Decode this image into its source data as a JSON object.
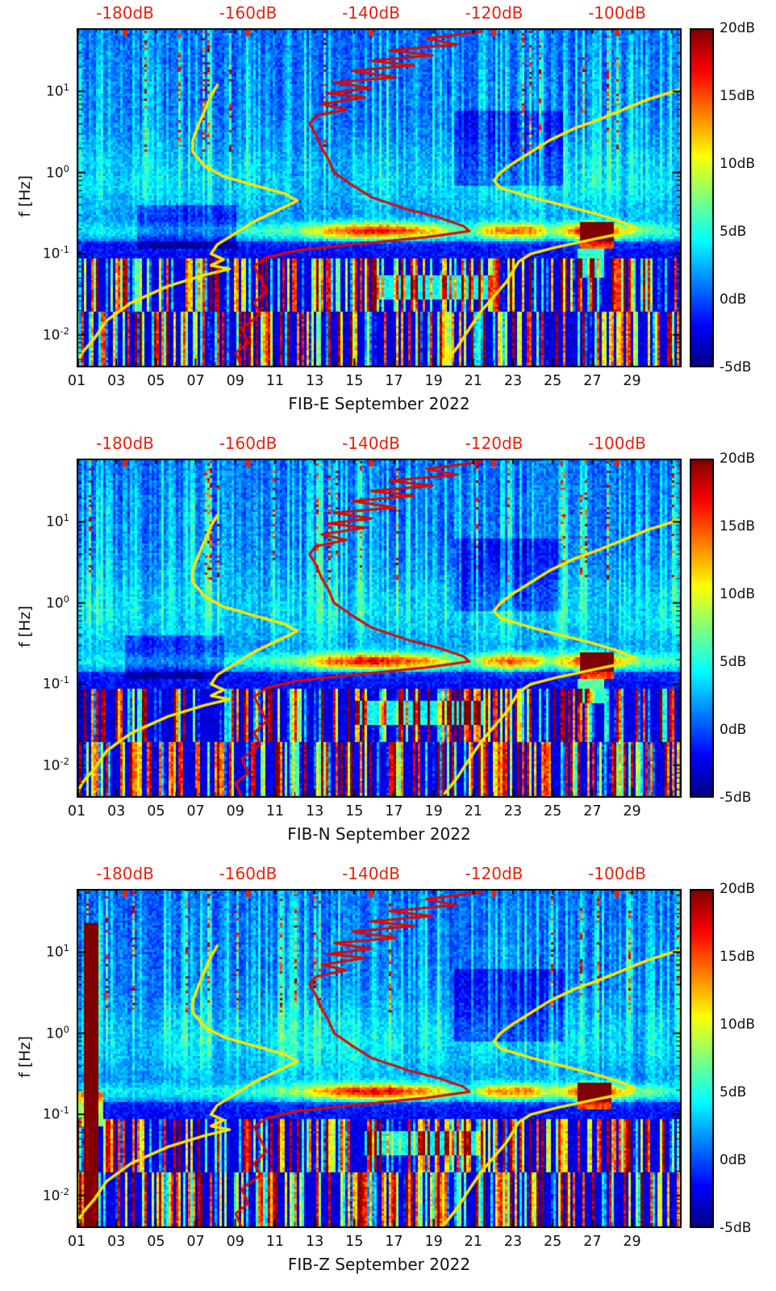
{
  "page": {
    "background": "#ffffff"
  },
  "colors": {
    "axis_text": "#111111",
    "top_axis_text": "#e8220f",
    "red_curve": "#e10600",
    "yellow_curve": "#ffe400",
    "plot_border": "#000000"
  },
  "chart_data": [
    {
      "type": "heatmap",
      "title": "FIB-E September 2022",
      "xlabel": "FIB-E September 2022",
      "ylabel": "f [Hz]",
      "x_ticks": [
        "01",
        "03",
        "05",
        "07",
        "09",
        "11",
        "13",
        "15",
        "17",
        "19",
        "21",
        "23",
        "25",
        "27",
        "29"
      ],
      "x_range_days": [
        1,
        31.5
      ],
      "y_ticks": [
        "10^1",
        "10^0",
        "10^-1",
        "10^-2"
      ],
      "y_scale": "log",
      "y_range_hz": [
        0.004,
        60
      ],
      "top_axis": {
        "ticks": [
          "-180dB",
          "-160dB",
          "-140dB",
          "-120dB",
          "-100dB"
        ],
        "values_db": [
          -180,
          -160,
          -140,
          -120,
          -100
        ],
        "applies_to": "overlay noise curves"
      },
      "colorbar": {
        "ticks": [
          "20dB",
          "15dB",
          "10dB",
          "5dB",
          "0dB",
          "-5dB"
        ],
        "values_db": [
          20,
          15,
          10,
          5,
          0,
          -5
        ],
        "range_db": [
          -5,
          20
        ],
        "colormap": "jet"
      },
      "heatmap": {
        "seed": 11,
        "band_profile": [
          [
            1,
            2.5
          ],
          [
            4,
            3
          ],
          [
            7,
            3
          ],
          [
            10,
            4
          ],
          [
            12,
            6
          ],
          [
            13,
            9
          ],
          [
            14,
            13
          ],
          [
            15,
            15
          ],
          [
            16,
            16
          ],
          [
            17,
            15
          ],
          [
            18,
            13
          ],
          [
            19,
            10
          ],
          [
            20,
            6
          ],
          [
            21,
            5
          ],
          [
            21.8,
            11
          ],
          [
            23,
            13
          ],
          [
            24,
            12
          ],
          [
            24.8,
            7
          ],
          [
            25.6,
            9
          ],
          [
            26.3,
            15
          ],
          [
            27,
            18
          ],
          [
            27.8,
            14
          ],
          [
            28.5,
            9
          ],
          [
            29.5,
            6
          ],
          [
            31,
            4
          ]
        ],
        "hotspots": [
          [
            26.4,
            28.1,
            -0.93,
            -0.62,
            16
          ],
          [
            26.3,
            27.6,
            -1.3,
            -0.95,
            7
          ],
          [
            4,
            9,
            -0.95,
            -0.4,
            -3
          ],
          [
            20,
            25.5,
            -0.15,
            0.75,
            -3
          ],
          [
            16,
            22,
            -1.55,
            -1.28,
            7
          ]
        ],
        "hotspot_format": "day_start, day_end, log10f_start, log10f_end, amplitude_db"
      }
    },
    {
      "type": "heatmap",
      "title": "FIB-N September 2022",
      "xlabel": "FIB-N September 2022",
      "ylabel": "f [Hz]",
      "x_ticks": [
        "01",
        "03",
        "05",
        "07",
        "09",
        "11",
        "13",
        "15",
        "17",
        "19",
        "21",
        "23",
        "25",
        "27",
        "29"
      ],
      "x_range_days": [
        1,
        31.5
      ],
      "y_ticks": [
        "10^1",
        "10^0",
        "10^-1",
        "10^-2"
      ],
      "y_scale": "log",
      "y_range_hz": [
        0.004,
        60
      ],
      "top_axis": {
        "ticks": [
          "-180dB",
          "-160dB",
          "-140dB",
          "-120dB",
          "-100dB"
        ],
        "values_db": [
          -180,
          -160,
          -140,
          -120,
          -100
        ],
        "applies_to": "overlay noise curves"
      },
      "colorbar": {
        "ticks": [
          "20dB",
          "15dB",
          "10dB",
          "5dB",
          "0dB",
          "-5dB"
        ],
        "values_db": [
          20,
          15,
          10,
          5,
          0,
          -5
        ],
        "range_db": [
          -5,
          20
        ],
        "colormap": "jet"
      },
      "heatmap": {
        "seed": 23,
        "band_profile": [
          [
            1,
            2.5
          ],
          [
            4,
            3
          ],
          [
            7,
            3
          ],
          [
            10,
            4
          ],
          [
            12,
            6
          ],
          [
            13,
            9
          ],
          [
            14,
            13
          ],
          [
            15,
            15
          ],
          [
            16,
            16
          ],
          [
            17,
            15
          ],
          [
            18,
            13
          ],
          [
            19,
            10
          ],
          [
            20,
            6
          ],
          [
            21,
            5
          ],
          [
            21.8,
            11
          ],
          [
            23,
            13
          ],
          [
            24,
            12
          ],
          [
            24.8,
            7
          ],
          [
            25.6,
            9
          ],
          [
            26.3,
            15
          ],
          [
            27,
            18
          ],
          [
            27.8,
            14
          ],
          [
            28.5,
            9
          ],
          [
            29.5,
            6
          ],
          [
            31,
            4
          ]
        ],
        "hotspots": [
          [
            26.4,
            28.1,
            -0.93,
            -0.62,
            16
          ],
          [
            26.2,
            27.6,
            -1.25,
            -0.95,
            8
          ],
          [
            3.5,
            8.5,
            -0.95,
            -0.4,
            -3
          ],
          [
            20,
            25.5,
            -0.1,
            0.8,
            -3
          ],
          [
            15,
            21.5,
            -1.5,
            -1.22,
            7
          ]
        ],
        "hotspot_format": "day_start, day_end, log10f_start, log10f_end, amplitude_db"
      }
    },
    {
      "type": "heatmap",
      "title": "FIB-Z September 2022",
      "xlabel": "FIB-Z September 2022",
      "ylabel": "f [Hz]",
      "x_ticks": [
        "01",
        "03",
        "05",
        "07",
        "09",
        "11",
        "13",
        "15",
        "17",
        "19",
        "21",
        "23",
        "25",
        "27",
        "29"
      ],
      "x_range_days": [
        1,
        31.5
      ],
      "y_ticks": [
        "10^1",
        "10^0",
        "10^-1",
        "10^-2"
      ],
      "y_scale": "log",
      "y_range_hz": [
        0.004,
        60
      ],
      "top_axis": {
        "ticks": [
          "-180dB",
          "-160dB",
          "-140dB",
          "-120dB",
          "-100dB"
        ],
        "values_db": [
          -180,
          -160,
          -140,
          -120,
          -100
        ],
        "applies_to": "overlay noise curves"
      },
      "colorbar": {
        "ticks": [
          "20dB",
          "15dB",
          "10dB",
          "5dB",
          "0dB",
          "-5dB"
        ],
        "values_db": [
          20,
          15,
          10,
          5,
          0,
          -5
        ],
        "range_db": [
          -5,
          20
        ],
        "colormap": "jet"
      },
      "heatmap": {
        "seed": 37,
        "band_profile": [
          [
            1,
            2.5
          ],
          [
            4,
            3
          ],
          [
            7,
            3
          ],
          [
            10,
            4
          ],
          [
            12,
            6
          ],
          [
            13,
            9
          ],
          [
            14,
            13
          ],
          [
            15,
            15
          ],
          [
            16,
            16
          ],
          [
            17,
            15
          ],
          [
            18,
            13
          ],
          [
            19,
            10
          ],
          [
            20,
            6
          ],
          [
            21,
            5
          ],
          [
            21.8,
            11
          ],
          [
            23,
            13
          ],
          [
            24,
            12
          ],
          [
            24.8,
            7
          ],
          [
            25.6,
            9
          ],
          [
            26.3,
            15
          ],
          [
            27,
            18
          ],
          [
            27.8,
            14
          ],
          [
            28.5,
            9
          ],
          [
            29.5,
            6
          ],
          [
            31,
            4
          ]
        ],
        "hotspots": [
          [
            26.3,
            28.0,
            -0.93,
            -0.62,
            16
          ],
          [
            1.35,
            2.05,
            -2.4,
            1.35,
            22
          ],
          [
            1.0,
            2.35,
            -1.15,
            -0.72,
            10
          ],
          [
            20,
            25.5,
            -0.1,
            0.8,
            -3
          ],
          [
            15.5,
            21.5,
            -1.5,
            -1.22,
            7
          ]
        ],
        "hotspot_format": "day_start, day_end, log10f_start, log10f_end, amplitude_db"
      }
    }
  ],
  "overlay_curves": {
    "note": "Curves overlaid on every panel; x-position is read against the red top dB axis, y is frequency in Hz.",
    "red_observed_db_vs_hz": [
      [
        55,
        -122
      ],
      [
        45,
        -131
      ],
      [
        38,
        -126
      ],
      [
        32,
        -137
      ],
      [
        28,
        -130
      ],
      [
        24,
        -140
      ],
      [
        21,
        -133
      ],
      [
        18,
        -143
      ],
      [
        15,
        -136
      ],
      [
        13,
        -146
      ],
      [
        11,
        -140
      ],
      [
        9.5,
        -147
      ],
      [
        8.5,
        -141
      ],
      [
        7,
        -148
      ],
      [
        6,
        -144
      ],
      [
        5,
        -149
      ],
      [
        4,
        -150
      ],
      [
        3,
        -149
      ],
      [
        2,
        -148
      ],
      [
        1.5,
        -147
      ],
      [
        1,
        -146
      ],
      [
        0.7,
        -143
      ],
      [
        0.5,
        -140
      ],
      [
        0.35,
        -134
      ],
      [
        0.28,
        -129
      ],
      [
        0.22,
        -125
      ],
      [
        0.19,
        -124
      ],
      [
        0.16,
        -131
      ],
      [
        0.13,
        -143
      ],
      [
        0.11,
        -152
      ],
      [
        0.09,
        -157
      ],
      [
        0.07,
        -159
      ],
      [
        0.05,
        -158
      ],
      [
        0.035,
        -157
      ],
      [
        0.025,
        -159
      ],
      [
        0.018,
        -158
      ],
      [
        0.012,
        -161
      ],
      [
        0.008,
        -160
      ],
      [
        0.006,
        -162
      ],
      [
        0.004,
        -161
      ]
    ],
    "yellow_left_db_vs_hz": [
      [
        0.004,
        -188
      ],
      [
        0.006,
        -187
      ],
      [
        0.009,
        -185
      ],
      [
        0.015,
        -183
      ],
      [
        0.025,
        -179
      ],
      [
        0.04,
        -173
      ],
      [
        0.055,
        -167
      ],
      [
        0.065,
        -163
      ],
      [
        0.072,
        -166
      ],
      [
        0.085,
        -164
      ],
      [
        0.1,
        -166
      ],
      [
        0.13,
        -165
      ],
      [
        0.18,
        -162
      ],
      [
        0.25,
        -159
      ],
      [
        0.35,
        -155
      ],
      [
        0.45,
        -152
      ],
      [
        0.55,
        -154
      ],
      [
        0.7,
        -159
      ],
      [
        0.9,
        -164
      ],
      [
        1.2,
        -167
      ],
      [
        1.8,
        -169
      ],
      [
        2.5,
        -169
      ],
      [
        4,
        -168
      ],
      [
        6,
        -167
      ],
      [
        9,
        -166
      ],
      [
        12,
        -165
      ]
    ],
    "yellow_right_db_vs_hz": [
      [
        10.5,
        -90
      ],
      [
        8,
        -95
      ],
      [
        6,
        -99
      ],
      [
        4.5,
        -103
      ],
      [
        3.5,
        -107
      ],
      [
        2.5,
        -111
      ],
      [
        1.8,
        -114
      ],
      [
        1.3,
        -117
      ],
      [
        1,
        -119
      ],
      [
        0.8,
        -120
      ],
      [
        0.65,
        -119
      ],
      [
        0.5,
        -114
      ],
      [
        0.4,
        -109
      ],
      [
        0.32,
        -104
      ],
      [
        0.26,
        -100
      ],
      [
        0.21,
        -97
      ],
      [
        0.18,
        -99
      ],
      [
        0.15,
        -104
      ],
      [
        0.12,
        -110
      ],
      [
        0.1,
        -114
      ],
      [
        0.08,
        -116
      ],
      [
        0.06,
        -117
      ],
      [
        0.045,
        -118
      ],
      [
        0.03,
        -120
      ],
      [
        0.02,
        -122
      ],
      [
        0.012,
        -124
      ],
      [
        0.007,
        -126
      ],
      [
        0.0045,
        -128
      ]
    ]
  }
}
